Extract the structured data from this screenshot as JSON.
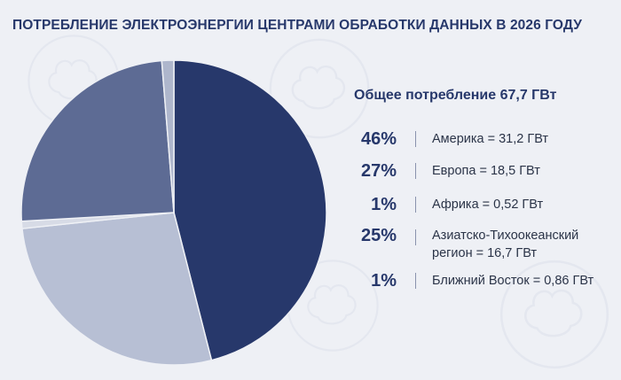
{
  "title": "ПОТРЕБЛЕНИЕ ЭЛЕКТРОЭНЕРГИИ ЦЕНТРАМИ ОБРАБОТКИ ДАННЫХ В 2026 ГОДУ",
  "total_label": "Общее потребление 67,7 ГВт",
  "legend": [
    {
      "pct": "46%",
      "label": "Америка = 31,2 ГВт"
    },
    {
      "pct": "27%",
      "label": "Европа = 18,5 ГВт"
    },
    {
      "pct": "1%",
      "label": "Африка = 0,52 ГВт"
    },
    {
      "pct": "25%",
      "label": "Азиатско-Тихоокеанский регион = 16,7 ГВт"
    },
    {
      "pct": "1%",
      "label": "Ближний Восток = 0,86 ГВт"
    }
  ],
  "chart_data": {
    "type": "pie",
    "title": "ПОТРЕБЛЕНИЕ ЭЛЕКТРОЭНЕРГИИ ЦЕНТРАМИ ОБРАБОТКИ ДАННЫХ В 2026 ГОДУ",
    "unit": "ГВт",
    "slices": [
      {
        "name": "Америка",
        "value": 31.2,
        "percent": 46,
        "color": "#27386b"
      },
      {
        "name": "Европа",
        "value": 18.5,
        "percent": 27,
        "color": "#b7bfd4"
      },
      {
        "name": "Африка",
        "value": 0.52,
        "percent": 1,
        "color": "#d7dbe6"
      },
      {
        "name": "Азиатско-Тихоокеанский регион",
        "value": 16.7,
        "percent": 25,
        "color": "#5d6b94"
      },
      {
        "name": "Ближний Восток",
        "value": 0.86,
        "percent": 1,
        "color": "#aeb6cc"
      }
    ],
    "start_angle": "12 o'clock",
    "direction": "clockwise"
  },
  "decor": {
    "background_icon": "brain-icon",
    "background_color": "#eef0f5"
  }
}
